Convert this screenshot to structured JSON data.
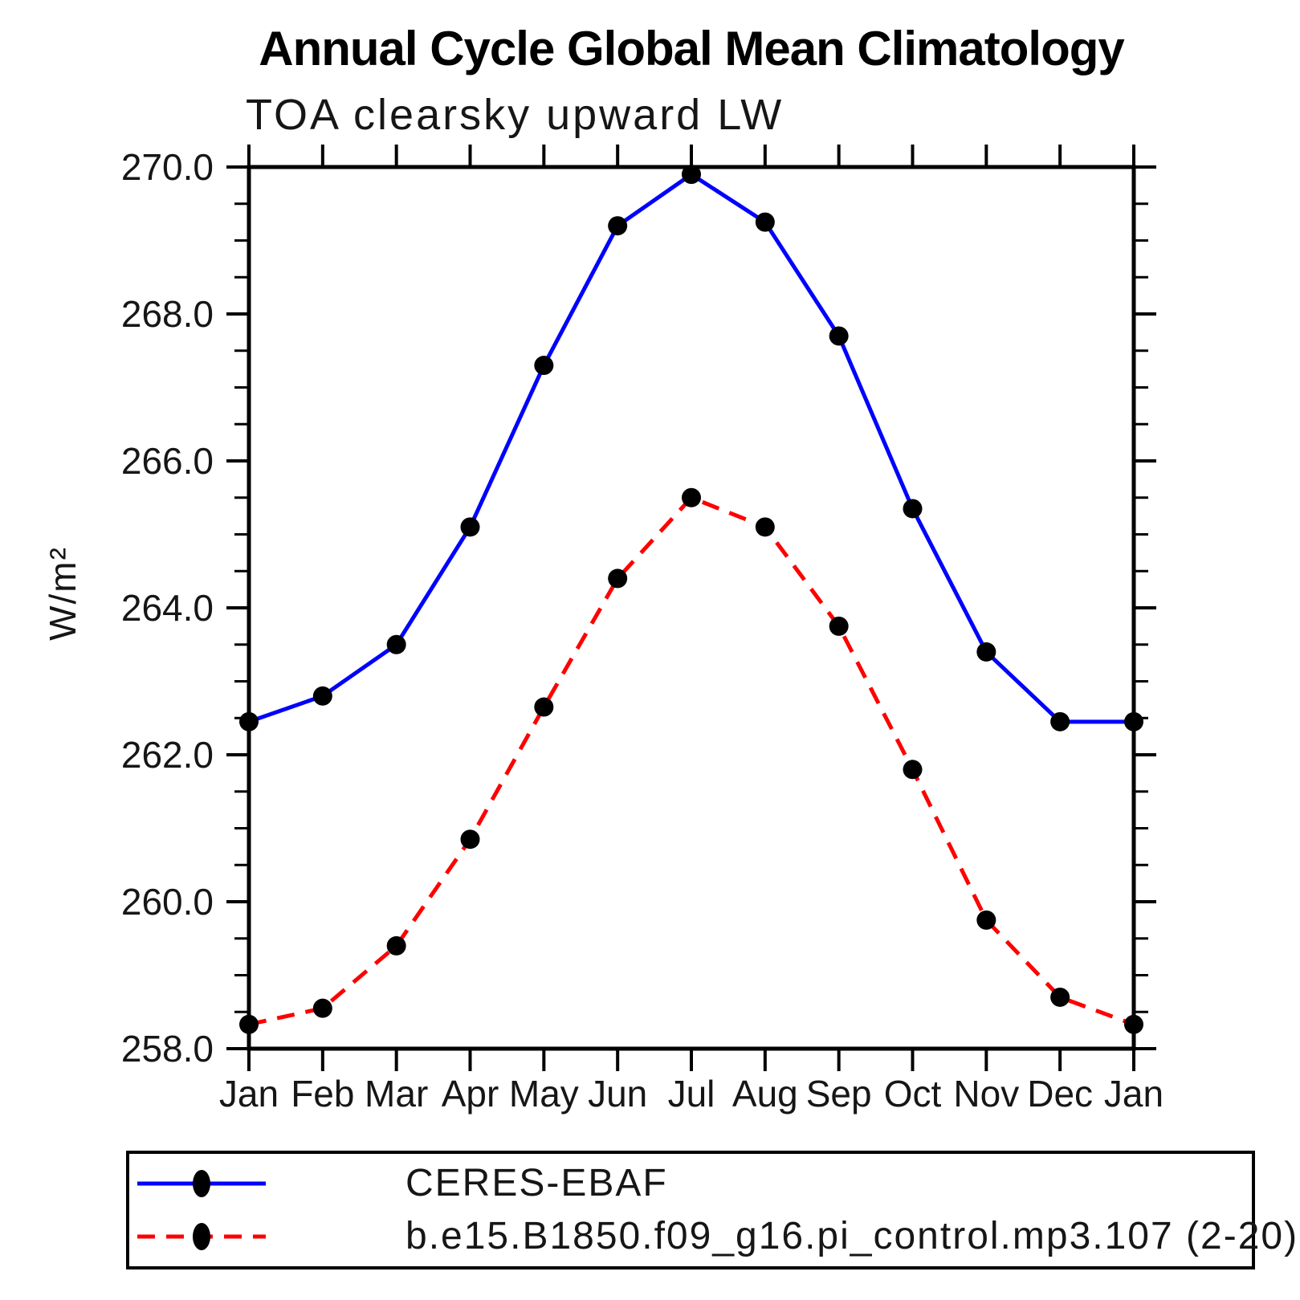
{
  "header": {
    "title": "Annual Cycle Global Mean Climatology",
    "subtitle": "TOA clearsky upward LW"
  },
  "chart_data": {
    "type": "line",
    "title": "Annual Cycle Global Mean Climatology",
    "subtitle": "TOA clearsky upward LW",
    "ylabel": "W/m²",
    "xlabel": "",
    "categories": [
      "Jan",
      "Feb",
      "Mar",
      "Apr",
      "May",
      "Jun",
      "Jul",
      "Aug",
      "Sep",
      "Oct",
      "Nov",
      "Dec",
      "Jan"
    ],
    "series": [
      {
        "name": "CERES-EBAF",
        "color": "#0000ff",
        "line_style": "solid",
        "marker": "filled-circle",
        "marker_color": "#000000",
        "values": [
          262.45,
          262.8,
          263.5,
          265.1,
          267.3,
          269.2,
          269.9,
          269.25,
          267.7,
          265.35,
          263.4,
          262.45,
          262.45
        ]
      },
      {
        "name": "b.e15.B1850.f09_g16.pi_control.mp3.107 (2-20)",
        "color": "#ff0000",
        "line_style": "dashed",
        "marker": "filled-circle",
        "marker_color": "#000000",
        "values": [
          258.33,
          258.55,
          259.4,
          260.85,
          262.65,
          264.4,
          265.5,
          265.1,
          263.75,
          261.8,
          259.75,
          258.7,
          258.33
        ]
      }
    ],
    "ylim": [
      258.0,
      270.0
    ],
    "y_major_step": 2.0,
    "y_minor_step": 0.5,
    "y_tick_label_decimals": 1,
    "grid": false,
    "legend_position": "bottom"
  }
}
